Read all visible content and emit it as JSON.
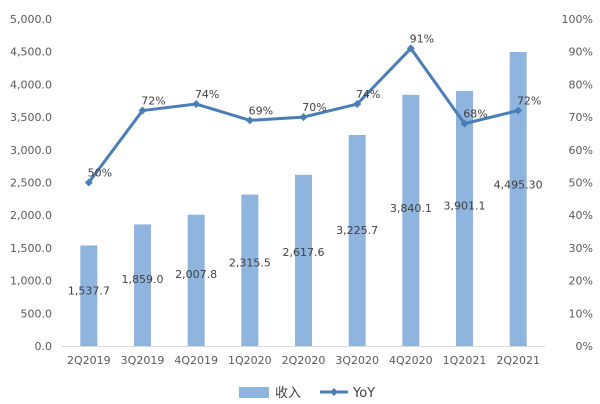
{
  "chart_data": {
    "type": "bar+line",
    "categories": [
      "2Q2019",
      "3Q2019",
      "4Q2019",
      "1Q2020",
      "2Q2020",
      "3Q2020",
      "4Q2020",
      "1Q2021",
      "2Q2021"
    ],
    "series": [
      {
        "name": "收入",
        "type": "bar",
        "axis": "left",
        "values": [
          1537.7,
          1859.0,
          2007.8,
          2315.5,
          2617.6,
          3225.7,
          3840.1,
          3901.1,
          4495.3
        ],
        "labels": [
          "1,537.7",
          "1,859.0",
          "2,007.8",
          "2,315.5",
          "2,617.6",
          "3,225.7",
          "3,840.1",
          "3,901.1",
          "4,495.30"
        ],
        "color": "#8fb4de"
      },
      {
        "name": "YoY",
        "type": "line",
        "axis": "right",
        "values": [
          50,
          72,
          74,
          69,
          70,
          74,
          91,
          68,
          72
        ],
        "labels": [
          "50%",
          "72%",
          "74%",
          "69%",
          "70%",
          "74%",
          "91%",
          "68%",
          "72%"
        ],
        "color": "#4a7eb5"
      }
    ],
    "y_left": {
      "ylim": [
        0,
        5000
      ],
      "ticks": [
        "0.0",
        "500.0",
        "1,000.0",
        "1,500.0",
        "2,000.0",
        "2,500.0",
        "3,000.0",
        "3,500.0",
        "4,000.0",
        "4,500.0",
        "5,000.0"
      ]
    },
    "y_right": {
      "ylim": [
        0,
        100
      ],
      "ticks": [
        "0%",
        "10%",
        "20%",
        "30%",
        "40%",
        "50%",
        "60%",
        "70%",
        "80%",
        "90%",
        "100%"
      ]
    },
    "grid": false,
    "legend": "bottom"
  }
}
